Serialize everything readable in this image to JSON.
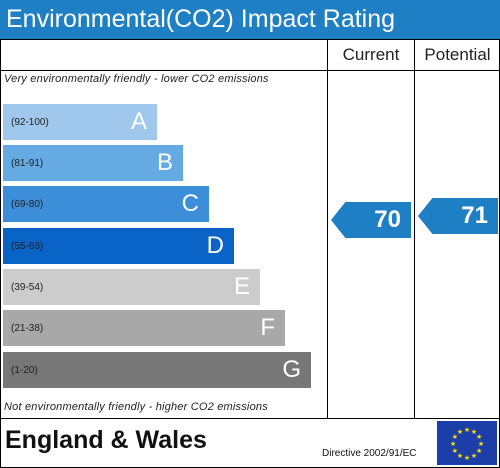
{
  "title": "Environmental(CO2) Impact Rating",
  "columns": {
    "current": "Current",
    "potential": "Potential"
  },
  "note_top": "Very environmentally friendly - lower CO2 emissions",
  "note_bottom": "Not environmentally friendly - higher CO2 emissions",
  "bands": [
    {
      "range": "(92-100)",
      "letter": "A",
      "color": "#9fc8ec"
    },
    {
      "range": "(81-91)",
      "letter": "B",
      "color": "#65aae3"
    },
    {
      "range": "(69-80)",
      "letter": "C",
      "color": "#3d8ed8"
    },
    {
      "range": "(55-68)",
      "letter": "D",
      "color": "#0a64c8"
    },
    {
      "range": "(39-54)",
      "letter": "E",
      "color": "#cccccc"
    },
    {
      "range": "(21-38)",
      "letter": "F",
      "color": "#a8a8a8"
    },
    {
      "range": "(1-20)",
      "letter": "G",
      "color": "#777777"
    }
  ],
  "current_rating": "70",
  "potential_rating": "71",
  "footer": {
    "region": "England & Wales",
    "directive": "Directive 2002/91/EC"
  },
  "accent_color": "#1f7fc4",
  "icons": {
    "eu_flag": "eu-flag-icon"
  }
}
